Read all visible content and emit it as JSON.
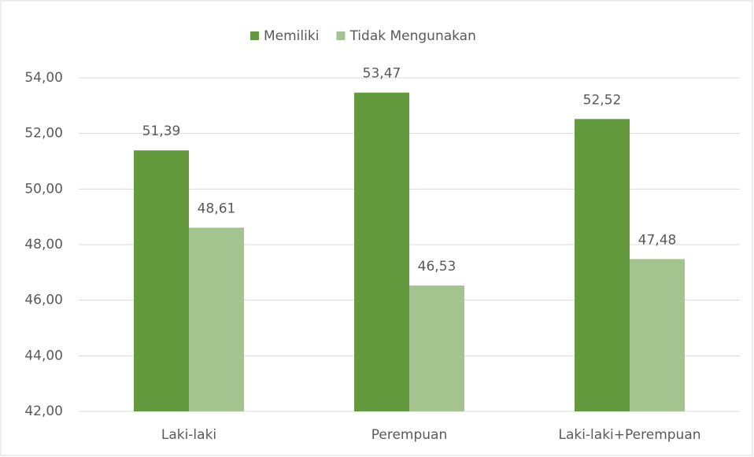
{
  "chart_data": {
    "type": "bar",
    "categories": [
      "Laki-laki",
      "Perempuan",
      "Laki-laki+Perempuan"
    ],
    "series": [
      {
        "name": "Memiliki",
        "color": "#629a3d",
        "values": [
          51.39,
          53.47,
          52.52
        ],
        "value_labels": [
          "51,39",
          "53,47",
          "52,52"
        ]
      },
      {
        "name": "Tidak Mengunakan",
        "color": "#a3c48e",
        "values": [
          48.61,
          46.53,
          47.48
        ],
        "value_labels": [
          "48,61",
          "46,53",
          "47,48"
        ]
      }
    ],
    "ylim": [
      42,
      54
    ],
    "yticks": [
      {
        "value": 42,
        "label": "42,00"
      },
      {
        "value": 44,
        "label": "44,00"
      },
      {
        "value": 46,
        "label": "46,00"
      },
      {
        "value": 48,
        "label": "48,00"
      },
      {
        "value": 50,
        "label": "50,00"
      },
      {
        "value": 52,
        "label": "52,00"
      },
      {
        "value": 54,
        "label": "54,00"
      }
    ],
    "grid": true,
    "legend": "top"
  }
}
